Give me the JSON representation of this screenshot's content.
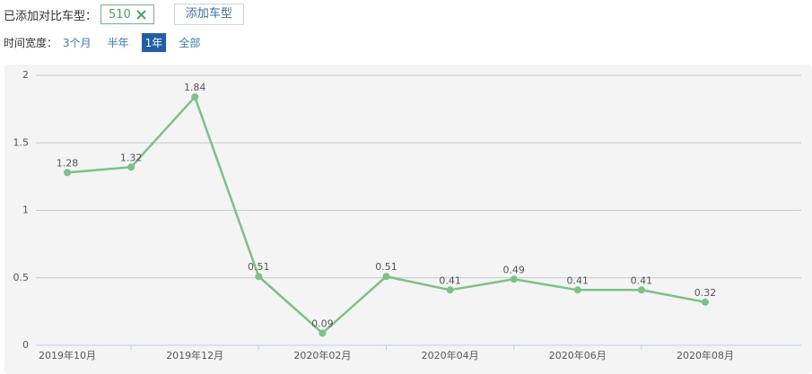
{
  "controls": {
    "compare_label": "已添加对比车型：",
    "tag": "510",
    "add_button": "添加车型",
    "range_label": "时间宽度：",
    "range_options": [
      "3个月",
      "半年",
      "1年",
      "全部"
    ],
    "selected_option": 2
  },
  "chart_data": {
    "type": "line",
    "categories": [
      "2019年10月",
      null,
      "2019年12月",
      null,
      "2020年02月",
      null,
      "2020年04月",
      null,
      "2020年06月",
      null,
      "2020年08月"
    ],
    "series": [
      {
        "name": "510",
        "color": "#79c484",
        "values": [
          1.28,
          1.32,
          1.84,
          0.51,
          0.09,
          0.51,
          0.41,
          0.49,
          0.41,
          0.41,
          0.32
        ]
      }
    ],
    "ylim": [
      0,
      2
    ],
    "yticks": [
      0,
      0.5,
      1,
      1.5,
      2
    ],
    "grid": true
  }
}
